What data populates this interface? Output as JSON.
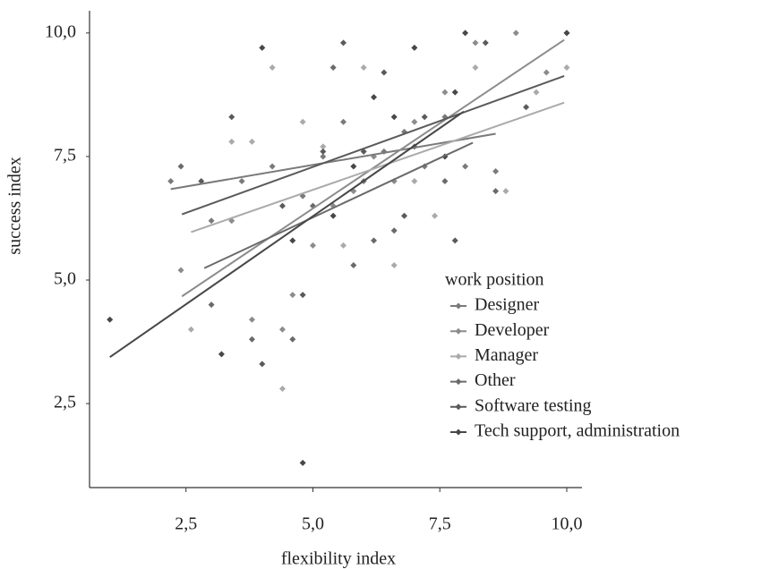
{
  "chart_data": {
    "type": "scatter",
    "x_label": "flexibility index",
    "y_label": "success index",
    "legend_title": "work position",
    "legend": "right",
    "xlim": [
      0.6,
      10.3
    ],
    "ylim": [
      0.8,
      10.45
    ],
    "xticks": [
      {
        "value": 2.5,
        "label": "2,5"
      },
      {
        "value": 5.0,
        "label": "5,0"
      },
      {
        "value": 7.5,
        "label": "7,5"
      },
      {
        "value": 10.0,
        "label": "10,0"
      }
    ],
    "yticks": [
      {
        "value": 2.5,
        "label": "2,5"
      },
      {
        "value": 5.0,
        "label": "5,0"
      },
      {
        "value": 7.5,
        "label": "7,5"
      },
      {
        "value": 10.0,
        "label": "10,0"
      }
    ],
    "series": [
      {
        "name": "Designer",
        "color": "#7a7a7a",
        "x": [
          2.2,
          3.0,
          3.6,
          4.2,
          4.8,
          5.2,
          5.6,
          6.0,
          6.4,
          6.8,
          7.2,
          7.6,
          8.0,
          8.6
        ],
        "values": [
          7.0,
          6.2,
          7.0,
          7.3,
          6.7,
          7.5,
          8.2,
          7.0,
          7.6,
          8.0,
          7.3,
          8.3,
          7.3,
          7.2
        ],
        "trend": {
          "x": [
            2.2,
            8.6
          ],
          "y": [
            6.84,
            7.96
          ]
        }
      },
      {
        "name": "Developer",
        "color": "#8c8c8c",
        "x": [
          2.4,
          3.4,
          3.8,
          4.4,
          4.6,
          5.0,
          5.4,
          5.8,
          6.2,
          6.6,
          7.0,
          7.6,
          8.2,
          9.0,
          9.6,
          10.0
        ],
        "values": [
          5.2,
          6.2,
          4.2,
          4.0,
          4.7,
          5.7,
          6.5,
          6.8,
          7.5,
          7.0,
          8.2,
          8.8,
          9.8,
          10.0,
          9.2,
          10.0
        ],
        "trend": {
          "x": [
            2.42,
            9.95
          ],
          "y": [
            4.67,
            9.86
          ]
        }
      },
      {
        "name": "Manager",
        "color": "#aaaaaa",
        "x": [
          2.6,
          3.4,
          3.8,
          4.2,
          4.4,
          4.8,
          5.2,
          5.6,
          6.0,
          6.6,
          7.0,
          7.4,
          8.2,
          8.8,
          9.4,
          10.0
        ],
        "values": [
          4.0,
          7.8,
          7.8,
          9.3,
          2.8,
          8.2,
          7.7,
          5.7,
          9.3,
          5.3,
          7.0,
          6.3,
          9.3,
          6.8,
          8.8,
          9.3
        ],
        "trend": {
          "x": [
            2.6,
            9.95
          ],
          "y": [
            5.97,
            8.59
          ]
        }
      },
      {
        "name": "Other",
        "color": "#6a6a6a",
        "x": [
          2.4,
          3.0,
          3.8,
          4.6,
          5.0,
          5.4,
          5.8,
          6.2,
          6.6,
          7.0,
          7.6,
          8.6
        ],
        "values": [
          7.3,
          4.5,
          3.8,
          3.8,
          6.5,
          9.3,
          5.3,
          5.8,
          6.0,
          7.7,
          7.0,
          6.8
        ],
        "trend": {
          "x": [
            2.86,
            8.15
          ],
          "y": [
            5.24,
            7.78
          ]
        }
      },
      {
        "name": "Software testing",
        "color": "#5a5a5a",
        "x": [
          2.8,
          3.4,
          4.0,
          4.4,
          4.8,
          5.2,
          5.6,
          6.0,
          6.4,
          6.8,
          7.2,
          7.8,
          8.4,
          9.2
        ],
        "values": [
          7.0,
          8.3,
          3.3,
          6.5,
          4.7,
          7.6,
          9.8,
          7.6,
          9.2,
          6.3,
          8.3,
          5.8,
          9.8,
          8.5
        ],
        "trend": {
          "x": [
            2.42,
            9.95
          ],
          "y": [
            6.33,
            9.13
          ]
        }
      },
      {
        "name": "Tech support, administration",
        "color": "#474747",
        "x": [
          1.0,
          3.2,
          4.0,
          4.6,
          4.8,
          5.4,
          5.8,
          6.2,
          6.6,
          7.0,
          7.6,
          7.8,
          8.0,
          10.0
        ],
        "values": [
          4.2,
          3.5,
          9.7,
          5.8,
          1.3,
          6.3,
          7.3,
          8.7,
          8.3,
          9.7,
          7.5,
          8.8,
          10.0,
          10.0
        ],
        "trend": {
          "x": [
            1.0,
            7.97
          ],
          "y": [
            3.44,
            8.41
          ]
        }
      }
    ]
  }
}
